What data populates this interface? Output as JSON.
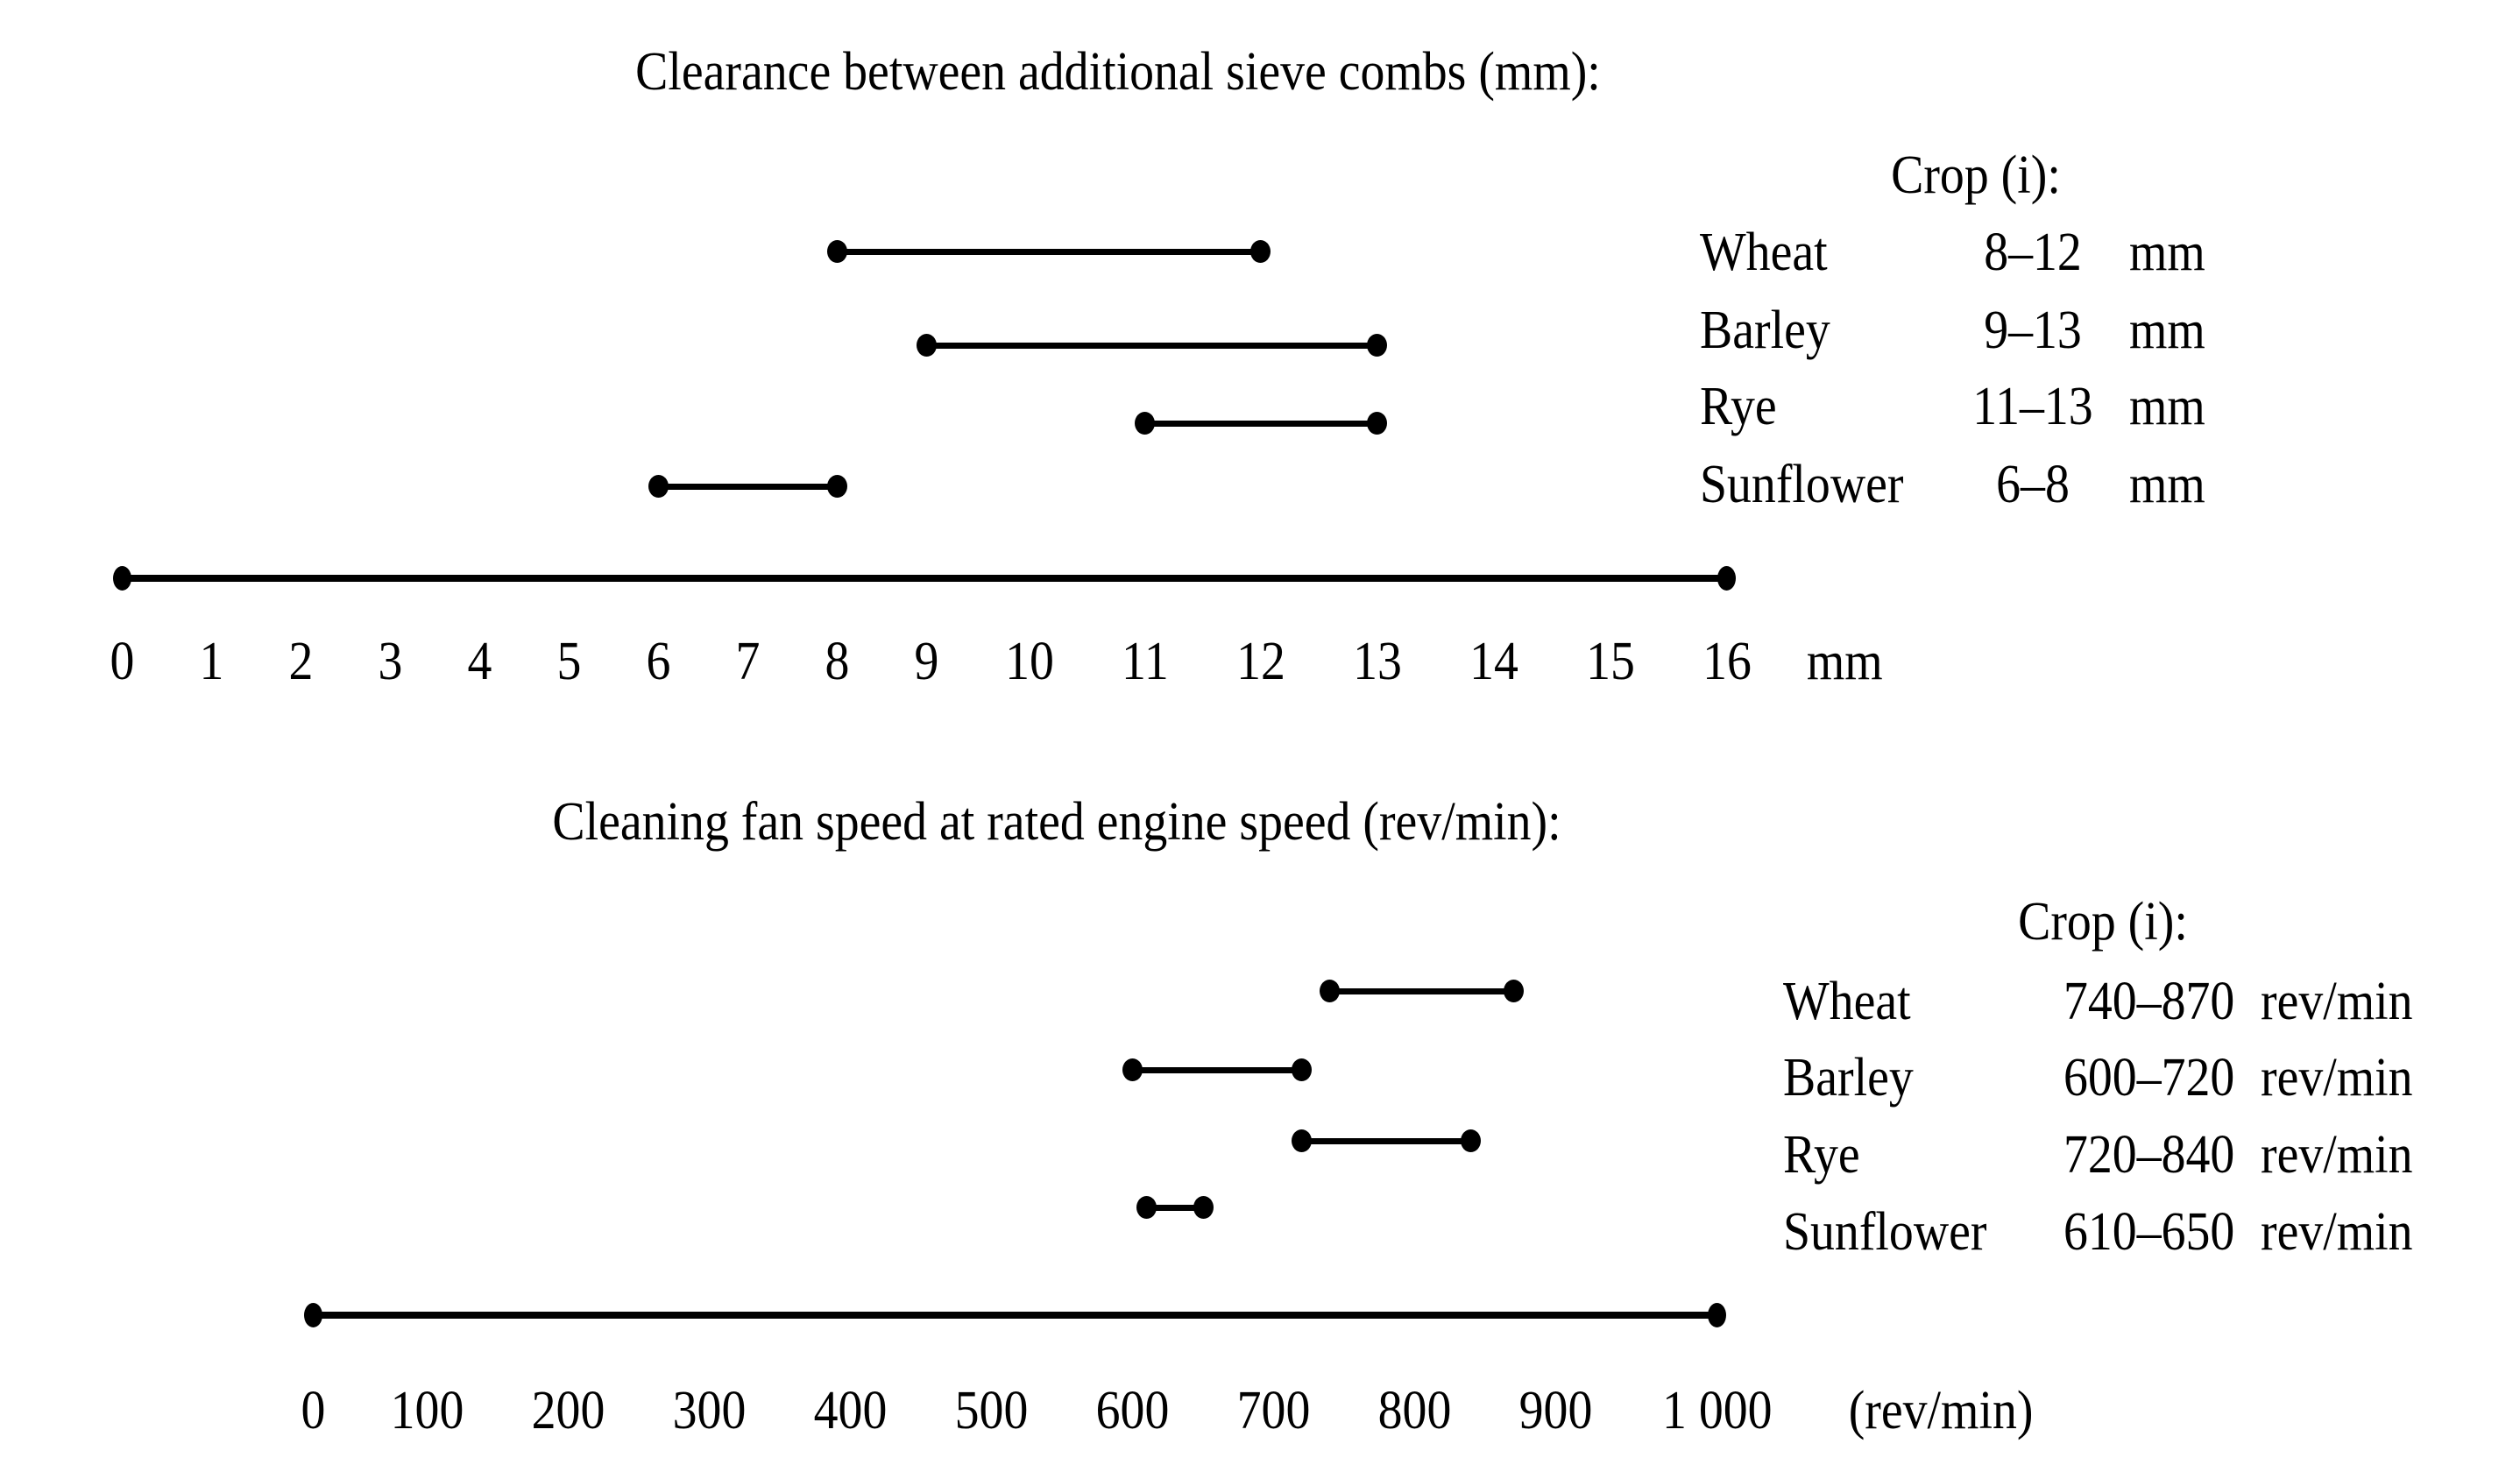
{
  "page": {
    "background_color": "#ffffff",
    "ink_color": "#000000"
  },
  "chart_data": [
    {
      "type": "range",
      "title": "Clearance between additional sieve combs (mm):",
      "legend_title": "Crop (i):",
      "legend_position": "right",
      "grid": false,
      "categories": [
        "Wheat",
        "Barley",
        "Rye",
        "Sunflower"
      ],
      "series": [
        {
          "name": "Wheat",
          "low": 8,
          "high": 12,
          "range_label": "8–12",
          "unit": "mm"
        },
        {
          "name": "Barley",
          "low": 9,
          "high": 13,
          "range_label": "9–13",
          "unit": "mm"
        },
        {
          "name": "Rye",
          "low": 11,
          "high": 13,
          "range_label": "11–13",
          "unit": "mm"
        },
        {
          "name": "Sunflower",
          "low": 6,
          "high": 8,
          "range_label": "6–8",
          "unit": "mm"
        }
      ],
      "axis": {
        "min": 0,
        "max": 16,
        "step": 1,
        "tick_labels": [
          "0",
          "1",
          "2",
          "3",
          "4",
          "5",
          "6",
          "7",
          "8",
          "9",
          "10",
          "11",
          "12",
          "13",
          "14",
          "15",
          "16"
        ],
        "unit_label": "mm"
      }
    },
    {
      "type": "range",
      "title": "Cleaning fan speed at rated engine speed (rev/min):",
      "legend_title": "Crop (i):",
      "legend_position": "right",
      "grid": false,
      "categories": [
        "Wheat",
        "Barley",
        "Rye",
        "Sunflower"
      ],
      "series": [
        {
          "name": "Wheat",
          "low": 740,
          "high": 870,
          "range_label": "740–870",
          "unit": "rev/min"
        },
        {
          "name": "Barley",
          "low": 600,
          "high": 720,
          "range_label": "600–720",
          "unit": "rev/min"
        },
        {
          "name": "Rye",
          "low": 720,
          "high": 840,
          "range_label": "720–840",
          "unit": "rev/min"
        },
        {
          "name": "Sunflower",
          "low": 610,
          "high": 650,
          "range_label": "610–650",
          "unit": "rev/min"
        }
      ],
      "axis": {
        "min": 0,
        "max": 1000,
        "step": 100,
        "tick_labels": [
          "0",
          "100",
          "200",
          "300",
          "400",
          "500",
          "600",
          "700",
          "800",
          "900",
          "1 000"
        ],
        "unit_label": "(rev/min)"
      }
    }
  ]
}
